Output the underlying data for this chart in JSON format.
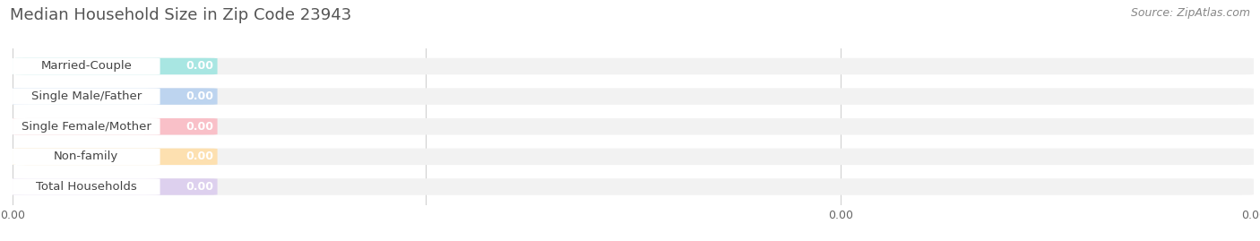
{
  "title": "Median Household Size in Zip Code 23943",
  "source": "Source: ZipAtlas.com",
  "categories": [
    "Married-Couple",
    "Single Male/Father",
    "Single Female/Mother",
    "Non-family",
    "Total Households"
  ],
  "values": [
    0.0,
    0.0,
    0.0,
    0.0,
    0.0
  ],
  "bar_colors": [
    "#5ecfca",
    "#8ab8e0",
    "#f08898",
    "#f7c98a",
    "#c3a8d8"
  ],
  "bar_light_colors": [
    "#a8e6e2",
    "#bdd4ef",
    "#f9c0c8",
    "#fde0b0",
    "#ddd0ee"
  ],
  "xlim_max": 1.0,
  "xtick_positions": [
    0.0,
    0.333,
    0.667,
    1.0
  ],
  "xtick_labels": [
    "0.00",
    "",
    "0.00",
    "0.00"
  ],
  "bg_color": "#ffffff",
  "row_bg_color": "#f2f2f2",
  "title_fontsize": 13,
  "source_fontsize": 9,
  "label_fontsize": 9.5,
  "value_fontsize": 9
}
